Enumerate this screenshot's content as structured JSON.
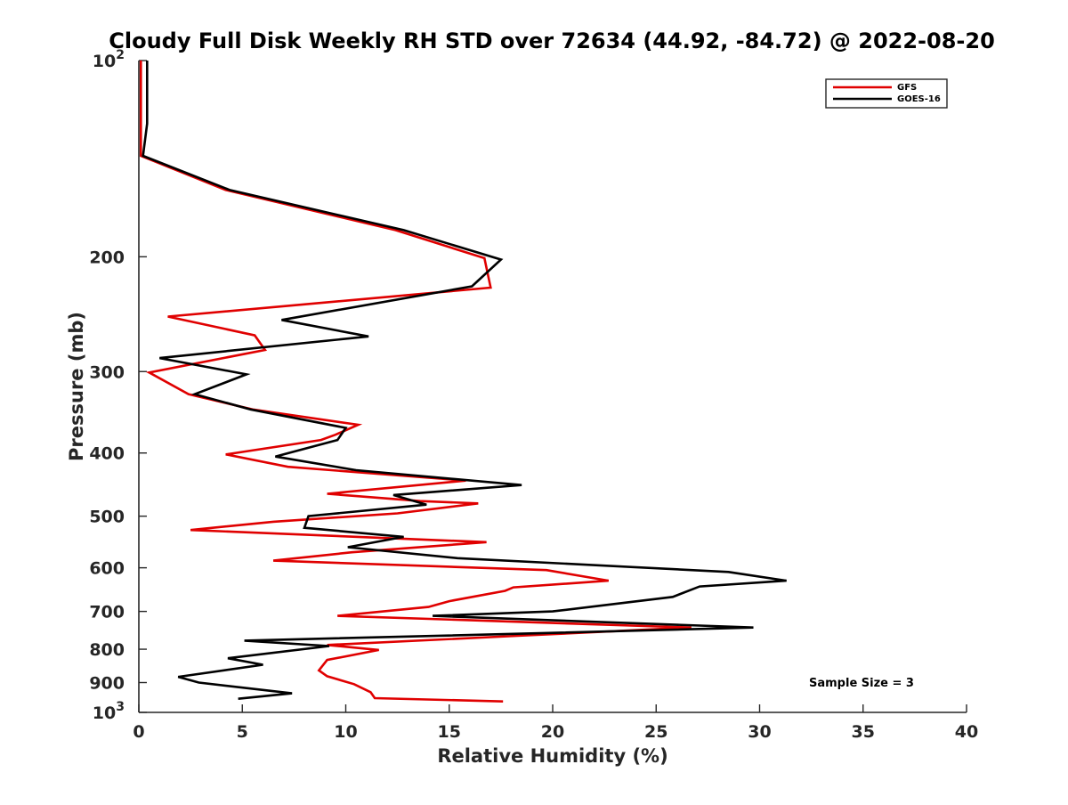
{
  "chart_data": {
    "type": "line",
    "title": "Cloudy Full Disk Weekly RH STD over 72634 (44.92, -84.72) @ 2022-08-20",
    "xlabel": "Relative Humidity (%)",
    "ylabel": "Pressure (mb)",
    "xlim": [
      0,
      40
    ],
    "ylim": [
      100,
      1000
    ],
    "y_scale": "log",
    "y_reversed": true,
    "grid": false,
    "x_ticks": [
      0,
      5,
      10,
      15,
      20,
      25,
      30,
      35,
      40
    ],
    "x_tick_labels": [
      "0",
      "5",
      "10",
      "15",
      "20",
      "25",
      "30",
      "35",
      "40"
    ],
    "y_ticks": [
      100,
      200,
      300,
      400,
      500,
      600,
      700,
      800,
      900,
      1000
    ],
    "y_tick_labels": [
      {
        "base": "10",
        "exp": "2"
      },
      {
        "base": "200",
        "exp": ""
      },
      {
        "base": "300",
        "exp": ""
      },
      {
        "base": "400",
        "exp": ""
      },
      {
        "base": "500",
        "exp": ""
      },
      {
        "base": "600",
        "exp": ""
      },
      {
        "base": "700",
        "exp": ""
      },
      {
        "base": "800",
        "exp": ""
      },
      {
        "base": "900",
        "exp": ""
      },
      {
        "base": "10",
        "exp": "3"
      }
    ],
    "legend_position": "top-right",
    "annotation": "Sample Size = 3",
    "series": [
      {
        "name": "GFS",
        "color": "#e00000",
        "points": [
          [
            0.1,
            100
          ],
          [
            0.1,
            110
          ],
          [
            0.1,
            125
          ],
          [
            0.1,
            140
          ],
          [
            4.2,
            158
          ],
          [
            12.4,
            182
          ],
          [
            16.7,
            201
          ],
          [
            17.0,
            223
          ],
          [
            1.4,
            247
          ],
          [
            5.6,
            264
          ],
          [
            6.1,
            278
          ],
          [
            0.5,
            301
          ],
          [
            2.4,
            325
          ],
          [
            5.5,
            343
          ],
          [
            10.6,
            362
          ],
          [
            9.5,
            375
          ],
          [
            8.8,
            382
          ],
          [
            4.2,
            402
          ],
          [
            7.2,
            420
          ],
          [
            15.8,
            441
          ],
          [
            9.1,
            462
          ],
          [
            13.6,
            474
          ],
          [
            16.4,
            478
          ],
          [
            12.5,
            495
          ],
          [
            6.5,
            510
          ],
          [
            2.5,
            525
          ],
          [
            16.8,
            548
          ],
          [
            10.3,
            568
          ],
          [
            6.5,
            585
          ],
          [
            19.7,
            605
          ],
          [
            22.7,
            628
          ],
          [
            18.1,
            643
          ],
          [
            17.7,
            651
          ],
          [
            15.0,
            675
          ],
          [
            14.0,
            689
          ],
          [
            9.6,
            711
          ],
          [
            26.7,
            741
          ],
          [
            18.3,
            763
          ],
          [
            9.1,
            788
          ],
          [
            11.6,
            802
          ],
          [
            9.1,
            831
          ],
          [
            8.7,
            862
          ],
          [
            9.1,
            880
          ],
          [
            10.4,
            905
          ],
          [
            11.2,
            931
          ],
          [
            11.4,
            951
          ],
          [
            17.6,
            962
          ]
        ]
      },
      {
        "name": "GOES-16",
        "color": "#000000",
        "points": [
          [
            0.4,
            100
          ],
          [
            0.4,
            110
          ],
          [
            0.4,
            125
          ],
          [
            0.2,
            140
          ],
          [
            4.4,
            158
          ],
          [
            12.8,
            182
          ],
          [
            17.5,
            202
          ],
          [
            16.1,
            222
          ],
          [
            6.9,
            250
          ],
          [
            11.1,
            265
          ],
          [
            1.0,
            286
          ],
          [
            5.2,
            303
          ],
          [
            2.7,
            325
          ],
          [
            5.4,
            343
          ],
          [
            10.0,
            366
          ],
          [
            9.6,
            382
          ],
          [
            6.6,
            405
          ],
          [
            10.5,
            425
          ],
          [
            18.5,
            448
          ],
          [
            12.3,
            464
          ],
          [
            13.9,
            480
          ],
          [
            8.2,
            500
          ],
          [
            8.0,
            521
          ],
          [
            12.8,
            538
          ],
          [
            10.1,
            558
          ],
          [
            15.4,
            580
          ],
          [
            28.5,
            609
          ],
          [
            31.3,
            628
          ],
          [
            27.1,
            641
          ],
          [
            25.8,
            665
          ],
          [
            20.0,
            700
          ],
          [
            14.2,
            711
          ],
          [
            29.7,
            741
          ],
          [
            20.0,
            755
          ],
          [
            5.1,
            776
          ],
          [
            9.2,
            791
          ],
          [
            4.3,
            826
          ],
          [
            6.0,
            845
          ],
          [
            1.9,
            882
          ],
          [
            2.9,
            900
          ],
          [
            7.4,
            935
          ],
          [
            4.8,
            953
          ]
        ]
      }
    ]
  }
}
